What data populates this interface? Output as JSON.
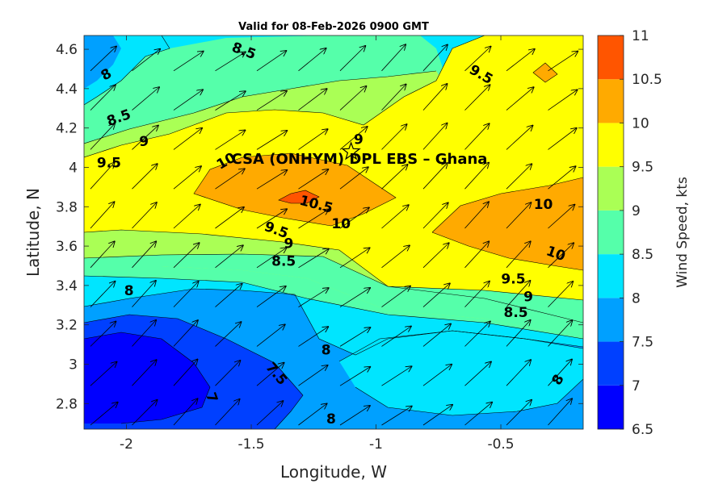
{
  "chart_data": {
    "type": "contour",
    "title": "Valid for 08-Feb-2026 0900 GMT",
    "xlabel": "Longitude, W",
    "ylabel": "Latitude, N",
    "xlim": [
      -2.17,
      -0.17
    ],
    "ylim": [
      2.67,
      4.67
    ],
    "x_ticks": [
      -2,
      -1.5,
      -1,
      -0.5
    ],
    "x_tick_labels": [
      "-2",
      "-1.5",
      "-1",
      "-0.5"
    ],
    "y_ticks": [
      2.8,
      3.0,
      3.2,
      3.4,
      3.6,
      3.8,
      4.0,
      4.2,
      4.4,
      4.6
    ],
    "y_tick_labels": [
      "2.8",
      "3",
      "3.2",
      "3.4",
      "3.6",
      "3.8",
      "4",
      "4.2",
      "4.4",
      "4.6"
    ],
    "colorbar": {
      "label": "Wind Speed, kts",
      "levels": [
        6.5,
        7,
        7.5,
        8,
        8.5,
        9,
        9.5,
        10,
        10.5,
        11
      ],
      "level_labels": [
        "6.5",
        "7",
        "7.5",
        "8",
        "8.5",
        "9",
        "9.5",
        "10",
        "10.5",
        "11"
      ],
      "colors": [
        "#0000ff",
        "#0040ff",
        "#00a0ff",
        "#00e5ff",
        "#55ffaa",
        "#aaff55",
        "#ffff00",
        "#ffaa00",
        "#ff5500"
      ]
    },
    "grid": false,
    "site": {
      "name": "CSA (ONHYM) DPL EBS  – Ghana",
      "lon": -1.1,
      "lat": 4.08,
      "marker": "star"
    },
    "wind_direction": "toward north-east",
    "contour_labels": [
      {
        "text": "8",
        "lon": -2.08,
        "lat": 4.47,
        "rot": -30
      },
      {
        "text": "8.5",
        "lon": -1.53,
        "lat": 4.59,
        "rot": 20
      },
      {
        "text": "8.5",
        "lon": -2.03,
        "lat": 4.25,
        "rot": -20
      },
      {
        "text": "9",
        "lon": -1.93,
        "lat": 4.13,
        "rot": 0
      },
      {
        "text": "9.5",
        "lon": -2.07,
        "lat": 4.02,
        "rot": 0
      },
      {
        "text": "9",
        "lon": -1.07,
        "lat": 4.14,
        "rot": 0
      },
      {
        "text": "9.5",
        "lon": -0.58,
        "lat": 4.47,
        "rot": 30
      },
      {
        "text": "10",
        "lon": -1.6,
        "lat": 4.03,
        "rot": -30
      },
      {
        "text": "10.5",
        "lon": -1.24,
        "lat": 3.81,
        "rot": 15
      },
      {
        "text": "10",
        "lon": -1.14,
        "lat": 3.71,
        "rot": 0
      },
      {
        "text": "10",
        "lon": -0.33,
        "lat": 3.81,
        "rot": 0
      },
      {
        "text": "10",
        "lon": -0.28,
        "lat": 3.56,
        "rot": 20
      },
      {
        "text": "9.5",
        "lon": -1.4,
        "lat": 3.68,
        "rot": 20
      },
      {
        "text": "9",
        "lon": -1.35,
        "lat": 3.61,
        "rot": 0
      },
      {
        "text": "8.5",
        "lon": -1.37,
        "lat": 3.52,
        "rot": 0
      },
      {
        "text": "9.5",
        "lon": -0.45,
        "lat": 3.43,
        "rot": 0
      },
      {
        "text": "9",
        "lon": -0.39,
        "lat": 3.34,
        "rot": 0
      },
      {
        "text": "8.5",
        "lon": -0.44,
        "lat": 3.26,
        "rot": 0
      },
      {
        "text": "8",
        "lon": -1.99,
        "lat": 3.37,
        "rot": 0
      },
      {
        "text": "8",
        "lon": -1.2,
        "lat": 3.07,
        "rot": 0
      },
      {
        "text": "7.5",
        "lon": -1.4,
        "lat": 2.95,
        "rot": 50
      },
      {
        "text": "7",
        "lon": -1.66,
        "lat": 2.83,
        "rot": 70
      },
      {
        "text": "8",
        "lon": -1.18,
        "lat": 2.72,
        "rot": 0
      },
      {
        "text": "8",
        "lon": -0.27,
        "lat": 2.92,
        "rot": -60
      }
    ]
  }
}
